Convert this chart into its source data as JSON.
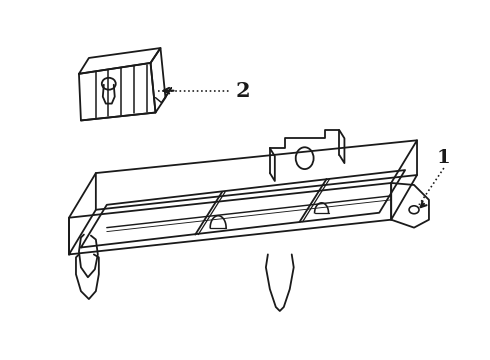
{
  "bg_color": "#ffffff",
  "line_color": "#1a1a1a",
  "lw": 1.3,
  "label1": "1",
  "label2": "2"
}
